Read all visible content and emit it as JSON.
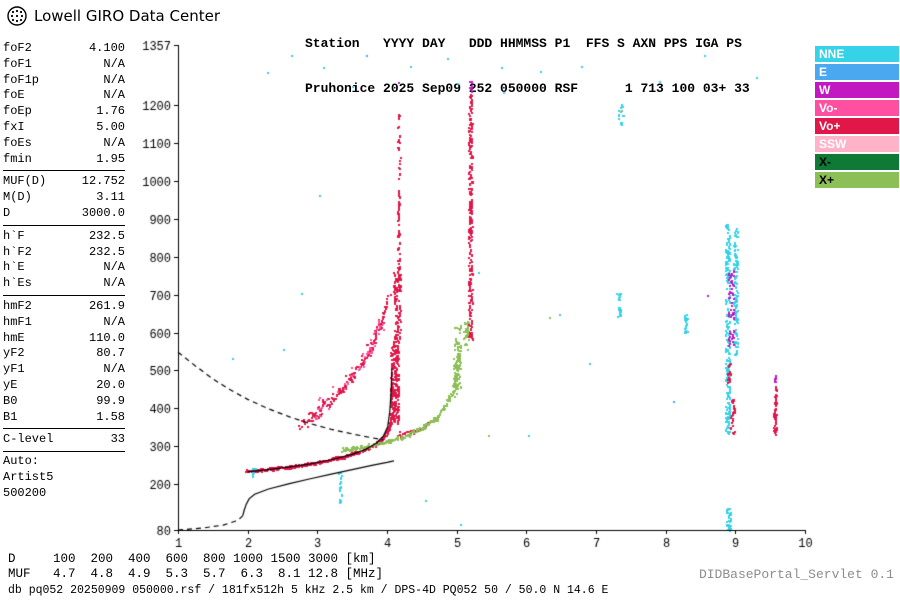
{
  "header": {
    "brand": "Lowell GIRO Data Center",
    "station_line1": "Station   YYYY DAY   DDD HHMMSS P1  FFS S AXN PPS IGA PS",
    "station_line2": "Pruhonice 2025 Sep09 252 050000 RSF      1 713 100 03+ 33"
  },
  "params": {
    "groups": [
      [
        {
          "l": "foF2",
          "v": "4.100"
        },
        {
          "l": "foF1",
          "v": "N/A"
        },
        {
          "l": "foF1p",
          "v": "N/A"
        },
        {
          "l": "foE",
          "v": "N/A"
        },
        {
          "l": "foEp",
          "v": "1.76"
        },
        {
          "l": "fxI",
          "v": "5.00"
        },
        {
          "l": "foEs",
          "v": "N/A"
        },
        {
          "l": "fmin",
          "v": "1.95"
        }
      ],
      [
        {
          "l": "MUF(D)",
          "v": "12.752"
        },
        {
          "l": "M(D)",
          "v": "3.11"
        },
        {
          "l": "D",
          "v": "3000.0"
        }
      ],
      [
        {
          "l": "h`F",
          "v": "232.5"
        },
        {
          "l": "h`F2",
          "v": "232.5"
        },
        {
          "l": "h`E",
          "v": "N/A"
        },
        {
          "l": "h`Es",
          "v": "N/A"
        }
      ],
      [
        {
          "l": "hmF2",
          "v": "261.9"
        },
        {
          "l": "hmF1",
          "v": "N/A"
        },
        {
          "l": "hmE",
          "v": "110.0"
        },
        {
          "l": "yF2",
          "v": "80.7"
        },
        {
          "l": "yF1",
          "v": "N/A"
        },
        {
          "l": "yE",
          "v": "20.0"
        },
        {
          "l": "B0",
          "v": "99.9"
        },
        {
          "l": "B1",
          "v": "1.58"
        }
      ],
      [
        {
          "l": "C-level",
          "v": "33"
        }
      ]
    ],
    "auto_lines": [
      "Auto:",
      "Artist5",
      "500200"
    ]
  },
  "legend": {
    "items": [
      {
        "label": "NNE",
        "color": "#35d2e8",
        "text": "#ffffff"
      },
      {
        "label": "E",
        "color": "#4aa8f0",
        "text": "#ffffff"
      },
      {
        "label": "W",
        "color": "#c218c2",
        "text": "#ffffff"
      },
      {
        "label": "Vo-",
        "color": "#ff4fa0",
        "text": "#ffffff"
      },
      {
        "label": "Vo+",
        "color": "#e01748",
        "text": "#ffffff"
      },
      {
        "label": "SSW",
        "color": "#ffb3c8",
        "text": "#ffffff"
      },
      {
        "label": "X-",
        "color": "#0e7a36",
        "text": "#000000"
      },
      {
        "label": "X+",
        "color": "#8cbf56",
        "text": "#000000"
      }
    ]
  },
  "chart_data": {
    "type": "scatter",
    "title": "Pruhonice ionogram 2025 Sep09 252 050000",
    "x_range": [
      1,
      10
    ],
    "y_range": [
      80,
      1357
    ],
    "x_ticks": [
      1,
      2,
      3,
      4,
      5,
      6,
      7,
      8,
      9,
      10
    ],
    "y_ticks": [
      80,
      200,
      300,
      400,
      500,
      600,
      700,
      800,
      900,
      1000,
      1100,
      1200,
      1357
    ],
    "grid": false,
    "colors": {
      "NNE": "#35d2e8",
      "E": "#4aa8f0",
      "W": "#c218c2",
      "Vo-": "#ff4fa0",
      "Vo+": "#e01748",
      "SSW": "#ffb3c8",
      "X-": "#0e7a36",
      "X+": "#8cbf56"
    },
    "traces": [
      {
        "name": "o-trace-main",
        "color": "Vo+",
        "kind": "band",
        "spread": 5,
        "count": 520,
        "size": 2,
        "path": [
          [
            1.97,
            236
          ],
          [
            2.2,
            240
          ],
          [
            2.5,
            246
          ],
          [
            2.8,
            253
          ],
          [
            3.1,
            263
          ],
          [
            3.35,
            274
          ],
          [
            3.6,
            288
          ],
          [
            3.8,
            304
          ],
          [
            3.92,
            320
          ],
          [
            4.0,
            342
          ],
          [
            4.05,
            368
          ]
        ]
      },
      {
        "name": "o-trace-cusp",
        "color": "Vo+",
        "kind": "column",
        "f": 4.1,
        "fj": 0.06,
        "h0": 360,
        "h1": 580,
        "count": 230,
        "size": 2
      },
      {
        "name": "o-trace-cusp-upper",
        "color": "Vo+",
        "kind": "column",
        "f": 4.14,
        "fj": 0.05,
        "h0": 580,
        "h1": 760,
        "count": 90,
        "size": 2
      },
      {
        "name": "o-spread-column-4_15",
        "color": "Vo+",
        "kind": "column",
        "f": 4.16,
        "fj": 0.02,
        "h0": 760,
        "h1": 1180,
        "count": 70,
        "size": 2
      },
      {
        "name": "o-extra-right",
        "color": "Vo+",
        "kind": "band",
        "spread": 8,
        "count": 40,
        "size": 2,
        "path": [
          [
            4.15,
            330
          ],
          [
            4.45,
            345
          ],
          [
            4.6,
            365
          ]
        ]
      },
      {
        "name": "second-hop",
        "color": "Vo+",
        "kind": "band",
        "spread": 22,
        "count": 190,
        "size": 2,
        "path": [
          [
            2.72,
            350
          ],
          [
            2.95,
            385
          ],
          [
            3.15,
            420
          ],
          [
            3.35,
            455
          ],
          [
            3.55,
            500
          ],
          [
            3.72,
            550
          ],
          [
            3.85,
            605
          ],
          [
            3.95,
            655
          ],
          [
            4.02,
            700
          ]
        ]
      },
      {
        "name": "second-hop-pink",
        "color": "Vo-",
        "kind": "band",
        "spread": 30,
        "count": 55,
        "size": 2,
        "path": [
          [
            2.9,
            380
          ],
          [
            3.2,
            430
          ],
          [
            3.5,
            490
          ],
          [
            3.75,
            560
          ],
          [
            3.95,
            640
          ]
        ]
      },
      {
        "name": "x-trace",
        "color": "X+",
        "kind": "band",
        "spread": 7,
        "count": 300,
        "size": 2,
        "path": [
          [
            3.35,
            292
          ],
          [
            3.65,
            300
          ],
          [
            3.95,
            312
          ],
          [
            4.25,
            328
          ],
          [
            4.5,
            350
          ],
          [
            4.7,
            378
          ],
          [
            4.85,
            412
          ],
          [
            4.95,
            455
          ],
          [
            5.0,
            510
          ],
          [
            5.03,
            565
          ]
        ]
      },
      {
        "name": "x-cusp",
        "color": "X+",
        "kind": "column",
        "f": 5.0,
        "fj": 0.05,
        "h0": 430,
        "h1": 620,
        "count": 70,
        "size": 2
      },
      {
        "name": "green-5_2-base",
        "color": "X+",
        "kind": "column",
        "f": 5.13,
        "fj": 0.04,
        "h0": 545,
        "h1": 630,
        "count": 28,
        "size": 2
      },
      {
        "name": "spread-column-5_2",
        "color": "Vo+",
        "kind": "column",
        "f": 5.19,
        "fj": 0.025,
        "h0": 580,
        "h1": 1230,
        "count": 230,
        "size": 2
      },
      {
        "name": "spread-column-5_2-top",
        "color": "W",
        "kind": "column",
        "f": 5.19,
        "fj": 0.02,
        "h0": 1230,
        "h1": 1265,
        "count": 10,
        "size": 2
      },
      {
        "name": "cyan-column-8_9",
        "color": "NNE",
        "kind": "column",
        "f": 8.88,
        "fj": 0.035,
        "h0": 330,
        "h1": 890,
        "count": 210,
        "size": 2
      },
      {
        "name": "cyan-column-9_0",
        "color": "NNE",
        "kind": "column",
        "f": 9.0,
        "fj": 0.03,
        "h0": 540,
        "h1": 880,
        "count": 110,
        "size": 2
      },
      {
        "name": "magenta-8_9",
        "color": "W",
        "kind": "column",
        "f": 8.93,
        "fj": 0.04,
        "h0": 560,
        "h1": 770,
        "count": 55,
        "size": 2
      },
      {
        "name": "red-8_9-low",
        "color": "Vo+",
        "kind": "column",
        "f": 8.95,
        "fj": 0.03,
        "h0": 330,
        "h1": 430,
        "count": 30,
        "size": 2
      },
      {
        "name": "red-8_9-mid",
        "color": "Vo+",
        "kind": "column",
        "f": 8.9,
        "fj": 0.02,
        "h0": 470,
        "h1": 520,
        "count": 18,
        "size": 2
      },
      {
        "name": "cyan-8_9-bottom",
        "color": "NNE",
        "kind": "column",
        "f": 8.9,
        "fj": 0.03,
        "h0": 82,
        "h1": 140,
        "count": 28,
        "size": 2
      },
      {
        "name": "cyan-7_3",
        "color": "NNE",
        "kind": "column",
        "f": 7.32,
        "fj": 0.03,
        "h0": 640,
        "h1": 705,
        "count": 26,
        "size": 2
      },
      {
        "name": "cyan-7_3-top",
        "color": "NNE",
        "kind": "column",
        "f": 7.35,
        "fj": 0.04,
        "h0": 1150,
        "h1": 1215,
        "count": 14,
        "size": 2
      },
      {
        "name": "cyan-8_3",
        "color": "NNE",
        "kind": "column",
        "f": 8.28,
        "fj": 0.03,
        "h0": 600,
        "h1": 655,
        "count": 18,
        "size": 2
      },
      {
        "name": "red-9_56",
        "color": "Vo+",
        "kind": "column",
        "f": 9.56,
        "fj": 0.02,
        "h0": 330,
        "h1": 460,
        "count": 45,
        "size": 2
      },
      {
        "name": "magenta-9_56",
        "color": "W",
        "kind": "column",
        "f": 9.56,
        "fj": 0.01,
        "h0": 465,
        "h1": 490,
        "count": 6,
        "size": 2
      },
      {
        "name": "cyan-3_3-low",
        "color": "NNE",
        "kind": "column",
        "f": 3.32,
        "fj": 0.02,
        "h0": 150,
        "h1": 235,
        "count": 16,
        "size": 2
      },
      {
        "name": "cyan-2_1",
        "color": "NNE",
        "kind": "column",
        "f": 2.08,
        "fj": 0.03,
        "h0": 225,
        "h1": 250,
        "count": 8,
        "size": 2
      }
    ],
    "specks": {
      "NNE": [
        [
          2.28,
          1285
        ],
        [
          2.62,
          1330
        ],
        [
          3.08,
          1300
        ],
        [
          3.5,
          1250
        ],
        [
          4.33,
          1302
        ],
        [
          4.86,
          1322
        ],
        [
          5.0,
          1256
        ],
        [
          5.63,
          1300
        ],
        [
          5.66,
          1232
        ],
        [
          6.2,
          1288
        ],
        [
          6.78,
          1302
        ],
        [
          7.9,
          1262
        ],
        [
          8.55,
          1330
        ],
        [
          9.3,
          1272
        ],
        [
          4.55,
          160
        ],
        [
          5.05,
          95
        ],
        [
          6.02,
          330
        ],
        [
          6.47,
          650
        ],
        [
          3.02,
          962
        ],
        [
          2.77,
          703
        ],
        [
          2.5,
          556
        ],
        [
          1.78,
          532
        ],
        [
          5.3,
          760
        ],
        [
          6.9,
          520
        ]
      ],
      "X+": [
        [
          7.36,
          1186
        ],
        [
          6.32,
          642
        ],
        [
          5.45,
          330
        ]
      ],
      "W": [
        [
          4.16,
          1260
        ],
        [
          8.6,
          700
        ]
      ],
      "E": [
        [
          3.7,
          1330
        ],
        [
          8.1,
          420
        ]
      ]
    },
    "lines": {
      "topside_dashed": [
        [
          1.0,
          548
        ],
        [
          1.25,
          512
        ],
        [
          1.5,
          478
        ],
        [
          1.75,
          449
        ],
        [
          2.0,
          424
        ],
        [
          2.3,
          399
        ],
        [
          2.6,
          378
        ],
        [
          2.9,
          360
        ],
        [
          3.2,
          345
        ],
        [
          3.5,
          333
        ],
        [
          3.75,
          324
        ],
        [
          3.95,
          317
        ]
      ],
      "profile_dashed_bottom": [
        [
          1.0,
          80
        ],
        [
          1.35,
          85
        ],
        [
          1.65,
          93
        ],
        [
          1.82,
          103
        ],
        [
          1.9,
          112
        ],
        [
          1.93,
          118
        ]
      ],
      "profile_solid": [
        [
          1.93,
          118
        ],
        [
          1.95,
          132
        ],
        [
          1.98,
          148
        ],
        [
          2.02,
          162
        ],
        [
          2.1,
          174
        ],
        [
          2.3,
          188
        ],
        [
          2.6,
          202
        ],
        [
          2.9,
          215
        ],
        [
          3.2,
          227
        ],
        [
          3.5,
          239
        ],
        [
          3.8,
          251
        ],
        [
          4.0,
          258
        ],
        [
          4.1,
          262
        ]
      ],
      "trace_solid": [
        [
          2.0,
          233
        ],
        [
          2.3,
          239
        ],
        [
          2.6,
          246
        ],
        [
          2.9,
          254
        ],
        [
          3.2,
          265
        ],
        [
          3.5,
          279
        ],
        [
          3.7,
          293
        ],
        [
          3.85,
          309
        ],
        [
          3.95,
          328
        ],
        [
          4.01,
          352
        ],
        [
          4.04,
          392
        ],
        [
          4.06,
          448
        ],
        [
          4.07,
          505
        ]
      ]
    }
  },
  "footer": {
    "rows": [
      {
        "label": "D",
        "values": [
          "100",
          "200",
          "400",
          "600",
          "800",
          "1000",
          "1500",
          "3000"
        ],
        "unit": "km"
      },
      {
        "label": "MUF",
        "values": [
          "4.7",
          "4.8",
          "4.9",
          "5.3",
          "5.7",
          "6.3",
          "8.1",
          "12.8"
        ],
        "unit": "MHz"
      }
    ],
    "info": "db pq052 20250909 050000.rsf / 181fx512h 5 kHz 2.5 km / DPS-4D PQ052 50 / 50.0 N 14.6 E",
    "watermark": "DIDBasePortal_Servlet 0.1"
  }
}
